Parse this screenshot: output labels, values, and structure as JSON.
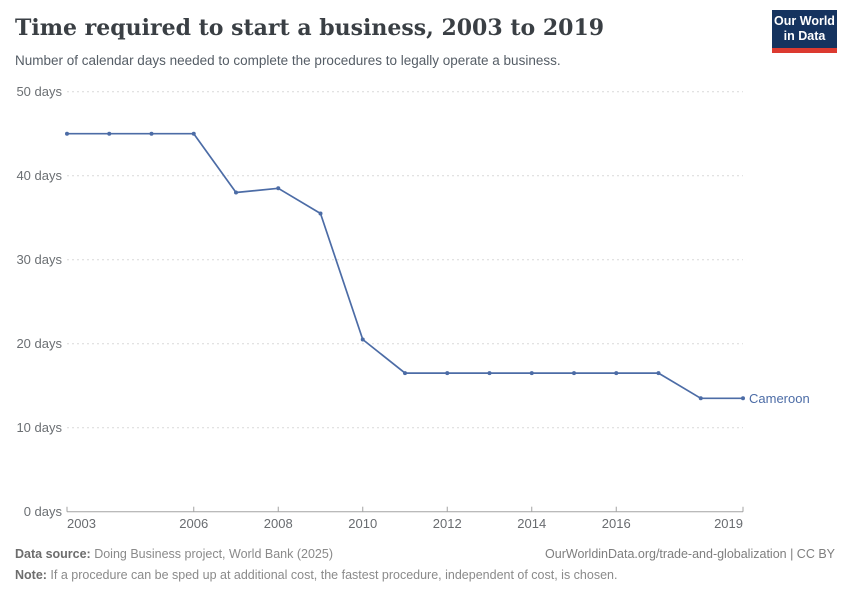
{
  "header": {
    "title": "Time required to start a business, 2003 to 2019",
    "subtitle": "Number of calendar days needed to complete the procedures to legally operate a business.",
    "logo": {
      "line1": "Our World",
      "line2": "in Data"
    }
  },
  "chart_data": {
    "type": "line",
    "title": "Time required to start a business, 2003 to 2019",
    "entity": "Cameroon",
    "unit": "days",
    "x": [
      2003,
      2004,
      2005,
      2006,
      2007,
      2008,
      2009,
      2010,
      2011,
      2012,
      2013,
      2014,
      2015,
      2016,
      2017,
      2018,
      2019
    ],
    "values": [
      45,
      45,
      45,
      45,
      38,
      38.5,
      35.5,
      20.5,
      16.5,
      16.5,
      16.5,
      16.5,
      16.5,
      16.5,
      16.5,
      13.5,
      13.5
    ],
    "xlim": [
      2003,
      2019
    ],
    "ylim": [
      0,
      50
    ],
    "grid": true,
    "legend_position": "end-of-line-label",
    "line_color": "#4c6ca6",
    "grid_color": "#d9d9d9",
    "axis_color": "#a3a3a3",
    "y_ticks": [
      {
        "value": 0,
        "label": "0 days"
      },
      {
        "value": 10,
        "label": "10 days"
      },
      {
        "value": 20,
        "label": "20 days"
      },
      {
        "value": 30,
        "label": "30 days"
      },
      {
        "value": 40,
        "label": "40 days"
      },
      {
        "value": 50,
        "label": "50 days"
      }
    ],
    "x_ticks": [
      {
        "value": 2003,
        "label": "2003"
      },
      {
        "value": 2006,
        "label": "2006"
      },
      {
        "value": 2008,
        "label": "2008"
      },
      {
        "value": 2010,
        "label": "2010"
      },
      {
        "value": 2012,
        "label": "2012"
      },
      {
        "value": 2014,
        "label": "2014"
      },
      {
        "value": 2016,
        "label": "2016"
      },
      {
        "value": 2019,
        "label": "2019"
      }
    ]
  },
  "footer": {
    "source_bold": "Data source:",
    "source_text": " Doing Business project, World Bank (2025)",
    "link": "OurWorldinData.org/trade-and-globalization | CC BY",
    "note_bold": "Note:",
    "note_text": " If a procedure can be sped up at additional cost, the fastest procedure, independent of cost, is chosen."
  }
}
